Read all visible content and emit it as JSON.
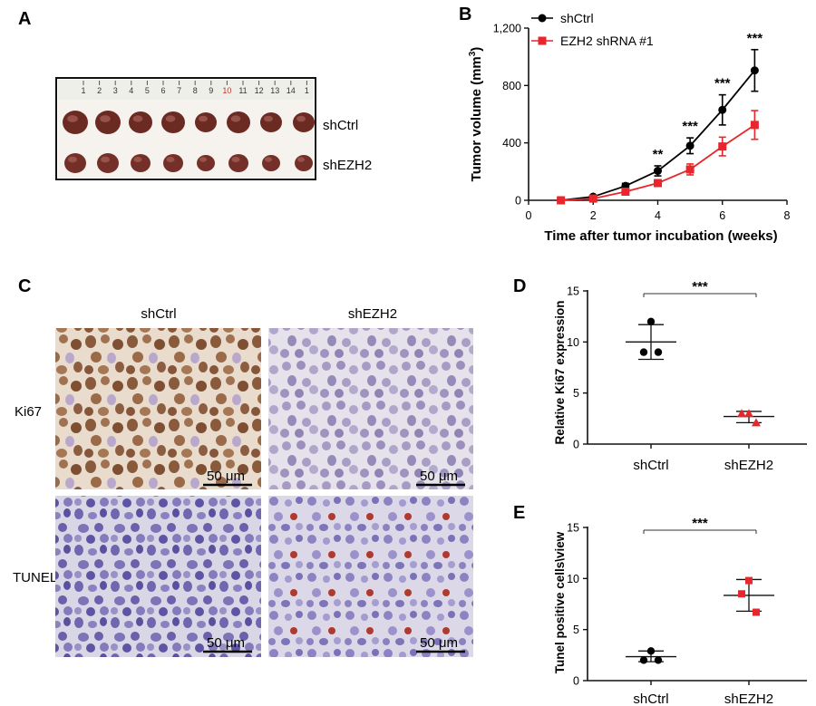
{
  "panel_letters": {
    "a": "A",
    "b": "B",
    "c": "C",
    "d": "D",
    "e": "E"
  },
  "panel_a": {
    "row_labels": [
      "shCtrl",
      "shEZH2"
    ],
    "ruler_numbers": [
      "1",
      "2",
      "3",
      "4",
      "5",
      "6",
      "7",
      "8",
      "9",
      "10",
      "11",
      "12",
      "13",
      "14",
      "1"
    ]
  },
  "panel_c": {
    "col_labels": [
      "shCtrl",
      "shEZH2"
    ],
    "row_labels": [
      "Ki67",
      "TUNEL"
    ],
    "scale_bar": "50 μm"
  },
  "colors": {
    "ctrl": "#000000",
    "ezh2": "#e8262b"
  },
  "chart_data": [
    {
      "id": "B",
      "type": "line",
      "xlabel": "Time after tumor incubation (weeks)",
      "ylabel": "Tumor volume (mm",
      "ylabel_sup": "3",
      "ylabel_close": ")",
      "xlim": [
        0,
        8
      ],
      "ylim": [
        0,
        1200
      ],
      "xticks": [
        0,
        2,
        4,
        6,
        8
      ],
      "yticks": [
        0,
        400,
        800,
        1200
      ],
      "ytick_labels": [
        "0",
        "400",
        "800",
        "1,200"
      ],
      "x": [
        1,
        2,
        3,
        4,
        5,
        6,
        7
      ],
      "series": [
        {
          "name": "shCtrl",
          "marker": "circle",
          "values": [
            0,
            25,
            100,
            205,
            380,
            630,
            905
          ],
          "err": [
            0,
            10,
            18,
            35,
            55,
            105,
            145
          ]
        },
        {
          "name": "EZH2 shRNA #1",
          "marker": "square",
          "values": [
            0,
            12,
            60,
            120,
            215,
            375,
            525
          ],
          "err": [
            0,
            8,
            15,
            22,
            38,
            65,
            100
          ]
        }
      ],
      "annotations": [
        {
          "x": 4,
          "text": "**"
        },
        {
          "x": 5,
          "text": "***"
        },
        {
          "x": 6,
          "text": "***"
        },
        {
          "x": 7,
          "text": "***"
        }
      ],
      "legend": "top-left"
    },
    {
      "id": "D",
      "type": "scatter",
      "ylabel": "Relative Ki67 expression",
      "ylim": [
        0,
        15
      ],
      "yticks": [
        0,
        5,
        10,
        15
      ],
      "categories": [
        "shCtrl",
        "shEZH2"
      ],
      "groups": [
        {
          "category": "shCtrl",
          "marker": "circle",
          "points": [
            12.0,
            9.0,
            9.0
          ],
          "mean": 10.0,
          "sd_low": 8.3,
          "sd_high": 11.7
        },
        {
          "category": "shEZH2",
          "marker": "triangle",
          "points": [
            3.0,
            3.0,
            2.1
          ],
          "mean": 2.7,
          "sd_low": 2.1,
          "sd_high": 3.2
        }
      ],
      "significance": "***"
    },
    {
      "id": "E",
      "type": "scatter",
      "ylabel": "Tunel positive cells\\view",
      "ylim": [
        0,
        15
      ],
      "yticks": [
        0,
        5,
        10,
        15
      ],
      "categories": [
        "shCtrl",
        "shEZH2"
      ],
      "groups": [
        {
          "category": "shCtrl",
          "marker": "circle",
          "points": [
            2.9,
            2.0,
            2.0
          ],
          "mean": 2.35,
          "sd_low": 1.85,
          "sd_high": 2.9
        },
        {
          "category": "shEZH2",
          "marker": "square",
          "points": [
            9.8,
            8.5,
            6.7
          ],
          "mean": 8.35,
          "sd_low": 6.8,
          "sd_high": 9.9
        }
      ],
      "significance": "***"
    }
  ]
}
